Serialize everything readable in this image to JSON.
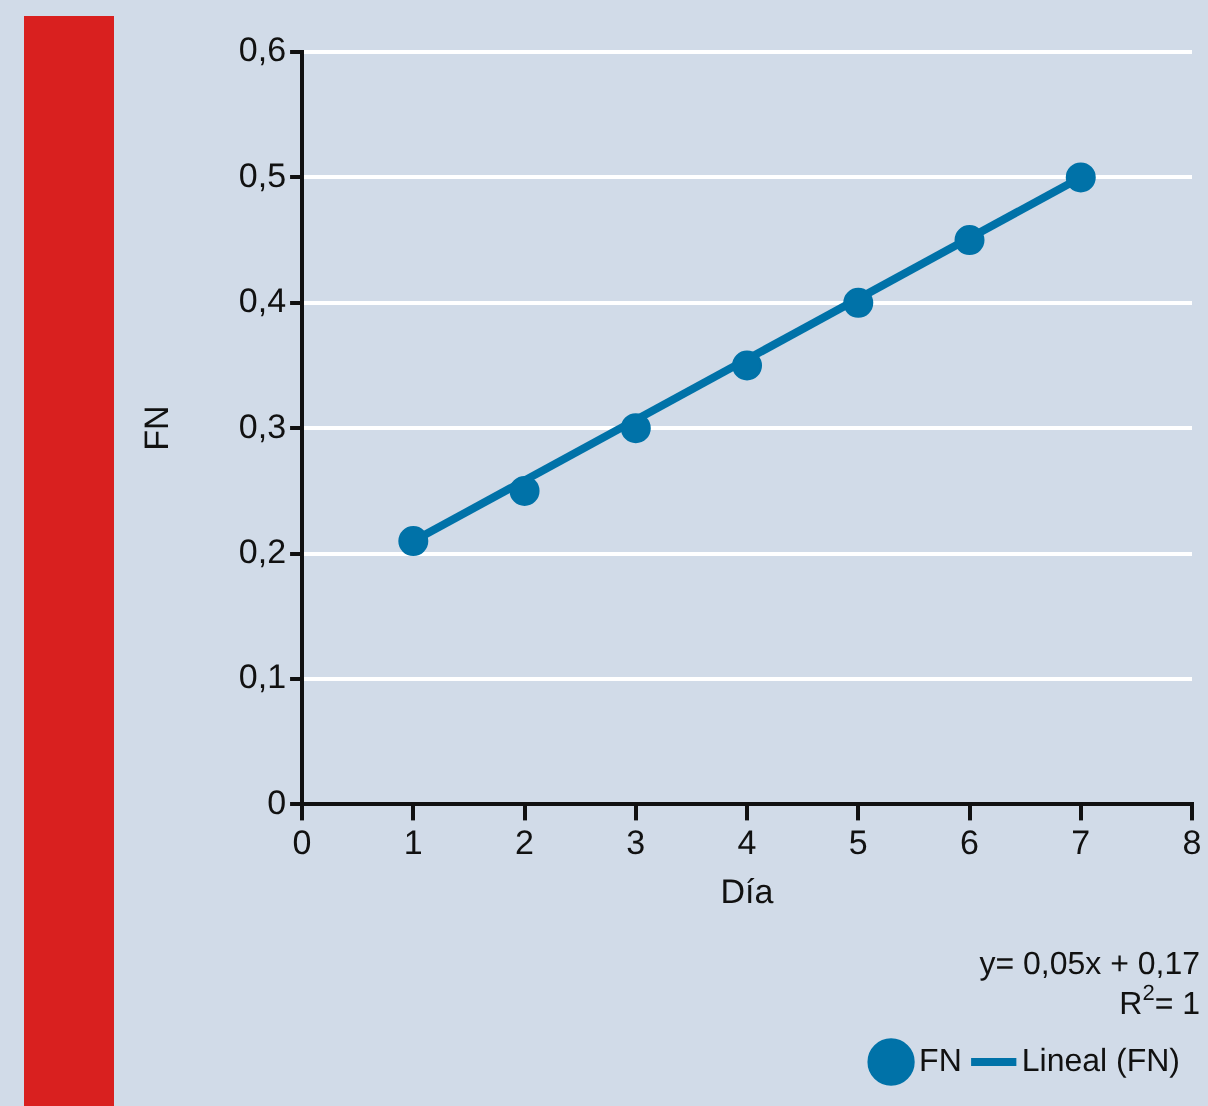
{
  "chart_data": {
    "type": "scatter",
    "xlabel": "Día",
    "ylabel": "FN",
    "x": [
      1,
      2,
      3,
      4,
      5,
      6,
      7
    ],
    "series": [
      {
        "name": "FN",
        "color": "#0072a8",
        "marker": "circle",
        "values": [
          0.21,
          0.25,
          0.3,
          0.35,
          0.4,
          0.45,
          0.5
        ]
      },
      {
        "name": "Lineal (FN)",
        "type": "line",
        "color": "#0072a8",
        "marker": "none",
        "x": [
          1,
          7
        ],
        "values": [
          0.21,
          0.5
        ]
      }
    ],
    "xlim": [
      0,
      8
    ],
    "xticks": [
      0,
      1,
      2,
      3,
      4,
      5,
      6,
      7,
      8
    ],
    "ylim": [
      0,
      0.6
    ],
    "yticks": [
      0,
      {
        "value": 0.1,
        "label": "0,1"
      },
      {
        "value": 0.2,
        "label": "0,2"
      },
      {
        "value": 0.3,
        "label": "0,3"
      },
      {
        "value": 0.4,
        "label": "0,4"
      },
      {
        "value": 0.5,
        "label": "0,5"
      },
      {
        "value": 0.6,
        "label": "0,6"
      }
    ],
    "annotations": [
      "y= 0,05x + 0,17",
      "R$^{2}$= 1"
    ],
    "grid": "y",
    "legend": "bottom right"
  }
}
